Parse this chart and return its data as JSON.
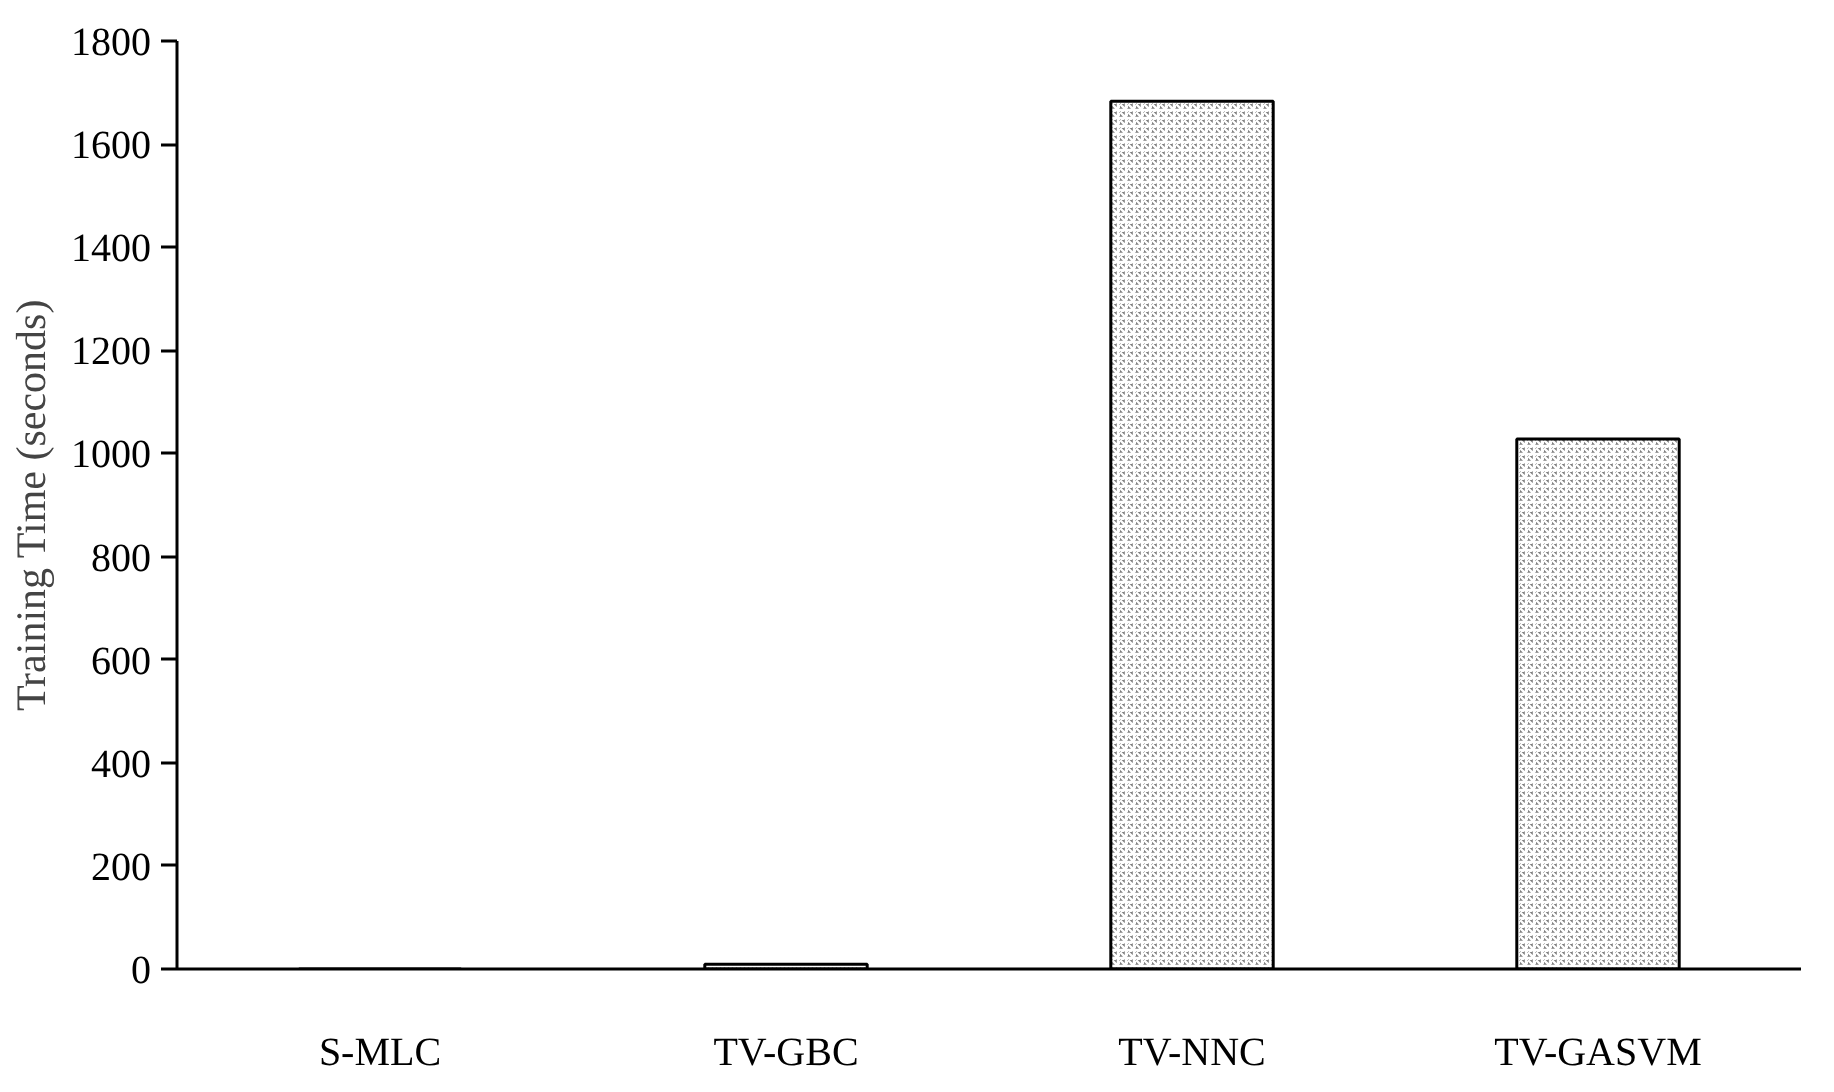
{
  "chart_data": {
    "type": "bar",
    "ylabel": "Training Time (seconds)",
    "categories": [
      "S-MLC",
      "TV-GBC",
      "TV-NNC",
      "TV-GASVM"
    ],
    "values": [
      0,
      9,
      1683,
      1028
    ],
    "color": "#7f7f7f",
    "ylim": [
      0,
      1800
    ],
    "yticks": [
      0,
      200,
      400,
      600,
      800,
      1000,
      1200,
      1400,
      1600,
      1800
    ],
    "grid": false
  }
}
